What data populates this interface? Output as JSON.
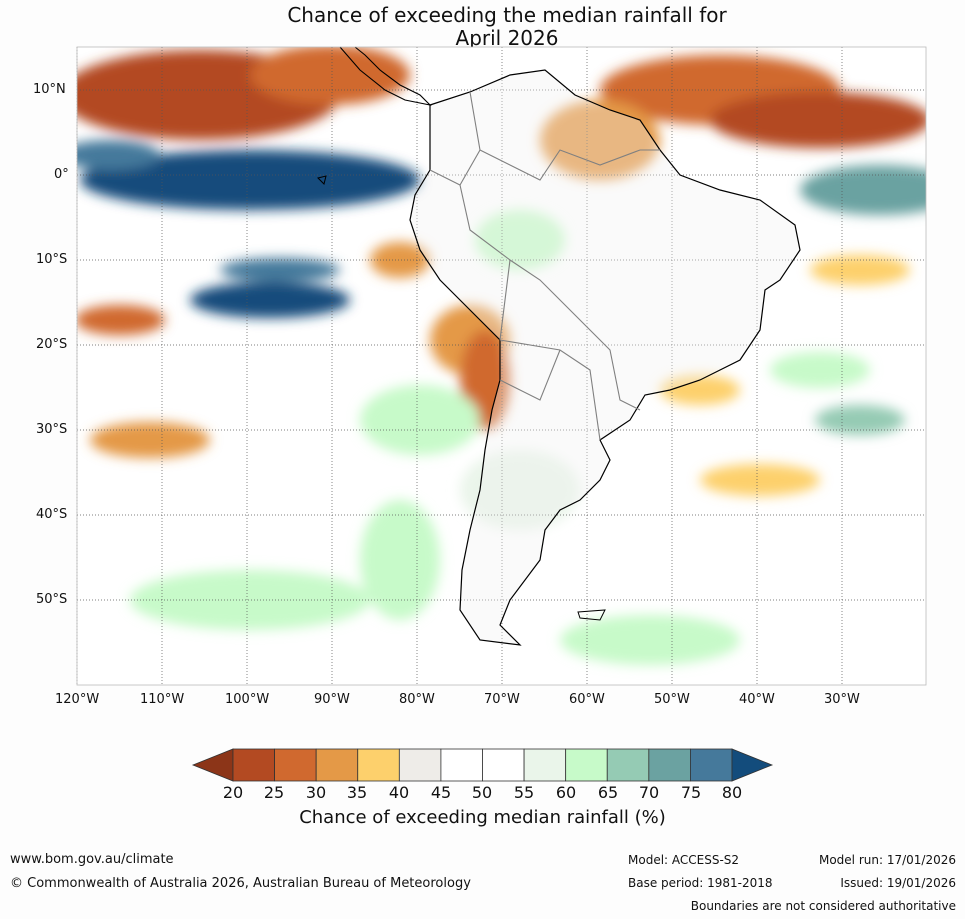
{
  "title_line1": "Chance of exceeding the median rainfall for",
  "title_line2": "April 2026",
  "map": {
    "lat_labels": [
      "10°N",
      "0°",
      "10°S",
      "20°S",
      "30°S",
      "40°S",
      "50°S"
    ],
    "lon_labels": [
      "120°W",
      "110°W",
      "100°W",
      "90°W",
      "80°W",
      "70°W",
      "60°W",
      "50°W",
      "40°W",
      "30°W"
    ],
    "land_color": "#f2f2f2",
    "coast_color": "#000000",
    "border_color": "#808080"
  },
  "colorbar": {
    "title": "Chance of exceeding median rainfall (%)",
    "ticks": [
      "20",
      "25",
      "30",
      "35",
      "40",
      "45",
      "50",
      "55",
      "60",
      "65",
      "70",
      "75",
      "80"
    ],
    "colors": [
      "#8c3518",
      "#b34a22",
      "#d0692f",
      "#e49947",
      "#fdd06c",
      "#eeece8",
      "#ffffff",
      "#ffffff",
      "#eaf5ea",
      "#c7fac9",
      "#95cbb4",
      "#6ba2a1",
      "#45799b",
      "#134c7c"
    ]
  },
  "footer": {
    "url": "www.bom.gov.au/climate",
    "copyright": "© Commonwealth of Australia 2026, Australian Bureau of Meteorology",
    "model": "Model: ACCESS-S2",
    "base_period": "Base period: 1981-2018",
    "model_run": "Model run: 17/01/2026",
    "issued": "Issued: 19/01/2026",
    "disclaimer": "Boundaries are not considered authoritative"
  }
}
